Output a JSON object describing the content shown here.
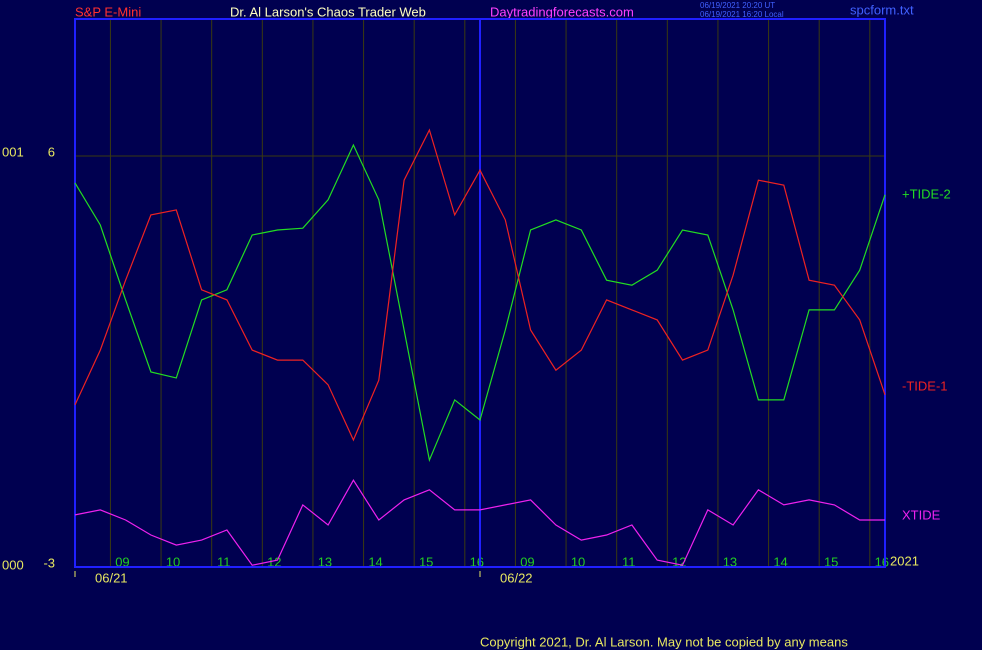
{
  "chart_data": {
    "type": "line",
    "header": {
      "instrument": "S&P E-Mini",
      "site": "Dr. Al Larson's Chaos Trader Web",
      "url": "Daytradingforecasts.com",
      "timestamp_ut": "06/19/2021 20:20 UT",
      "timestamp_local": "06/19/2021 16:20 Local",
      "file": "spcform.txt"
    },
    "left_labels": [
      "001",
      "000"
    ],
    "year_label": "2021",
    "copyright": "Copyright 2021, Dr. Al Larson. May not be copied by any means",
    "dates": [
      {
        "value": 0,
        "label": "06/21"
      },
      {
        "value": 8,
        "label": "06/22"
      }
    ],
    "x": [
      0,
      0.5,
      1,
      1.5,
      2,
      2.5,
      3,
      3.5,
      4,
      4.5,
      5,
      5.5,
      6,
      6.5,
      7,
      7.5,
      8,
      8.5,
      9,
      9.5,
      10,
      10.5,
      11,
      11.5,
      12,
      12.5,
      13,
      13.5,
      14,
      14.5,
      15,
      15.5,
      16
    ],
    "xlim": [
      0,
      16
    ],
    "xticks": [
      {
        "value": 0.7,
        "label": "09"
      },
      {
        "value": 1.7,
        "label": "10"
      },
      {
        "value": 2.7,
        "label": "11"
      },
      {
        "value": 3.7,
        "label": "12"
      },
      {
        "value": 4.7,
        "label": "13"
      },
      {
        "value": 5.7,
        "label": "14"
      },
      {
        "value": 6.7,
        "label": "15"
      },
      {
        "value": 7.7,
        "label": "16"
      },
      {
        "value": 8.7,
        "label": "09"
      },
      {
        "value": 9.7,
        "label": "10"
      },
      {
        "value": 10.7,
        "label": "11"
      },
      {
        "value": 11.7,
        "label": "12"
      },
      {
        "value": 12.7,
        "label": "13"
      },
      {
        "value": 13.7,
        "label": "14"
      },
      {
        "value": 14.7,
        "label": "15"
      },
      {
        "value": 15.7,
        "label": "16"
      }
    ],
    "ylim": [
      -3,
      9
    ],
    "yticks": [
      -3,
      6
    ],
    "grid": true,
    "series": [
      {
        "name": "+TIDE-2",
        "color": "#22dd22",
        "values": [
          5.41,
          4.49,
          2.85,
          1.27,
          1.14,
          2.85,
          3.07,
          4.27,
          4.38,
          4.42,
          5.04,
          6.24,
          5.04,
          2.19,
          -0.66,
          0.66,
          0.22,
          2.19,
          4.38,
          4.6,
          4.38,
          3.28,
          3.17,
          3.5,
          4.38,
          4.27,
          2.63,
          0.66,
          0.66,
          2.63,
          2.63,
          3.5,
          5.15
        ]
      },
      {
        "name": "-TIDE-1",
        "color": "#ee2222",
        "values": [
          0.55,
          1.75,
          3.28,
          4.71,
          4.82,
          3.07,
          2.85,
          1.75,
          1.53,
          1.53,
          0.99,
          -0.22,
          1.09,
          5.47,
          6.57,
          4.71,
          5.69,
          4.6,
          2.19,
          1.31,
          1.75,
          2.85,
          2.63,
          2.41,
          1.53,
          1.75,
          3.39,
          5.47,
          5.36,
          3.28,
          3.17,
          2.41,
          0.77
        ]
      },
      {
        "name": "XTIDE",
        "color": "#ee22ee",
        "values": [
          -1.86,
          -1.75,
          -1.97,
          -2.3,
          -2.52,
          -2.41,
          -2.19,
          -2.96,
          -2.85,
          -1.64,
          -2.08,
          -1.1,
          -1.97,
          -1.53,
          -1.31,
          -1.75,
          -1.75,
          -1.64,
          -1.53,
          -2.08,
          -2.41,
          -2.3,
          -2.08,
          -2.85,
          -2.96,
          -1.75,
          -2.08,
          -1.31,
          -1.64,
          -1.53,
          -1.64,
          -1.97,
          -1.97
        ]
      }
    ]
  }
}
